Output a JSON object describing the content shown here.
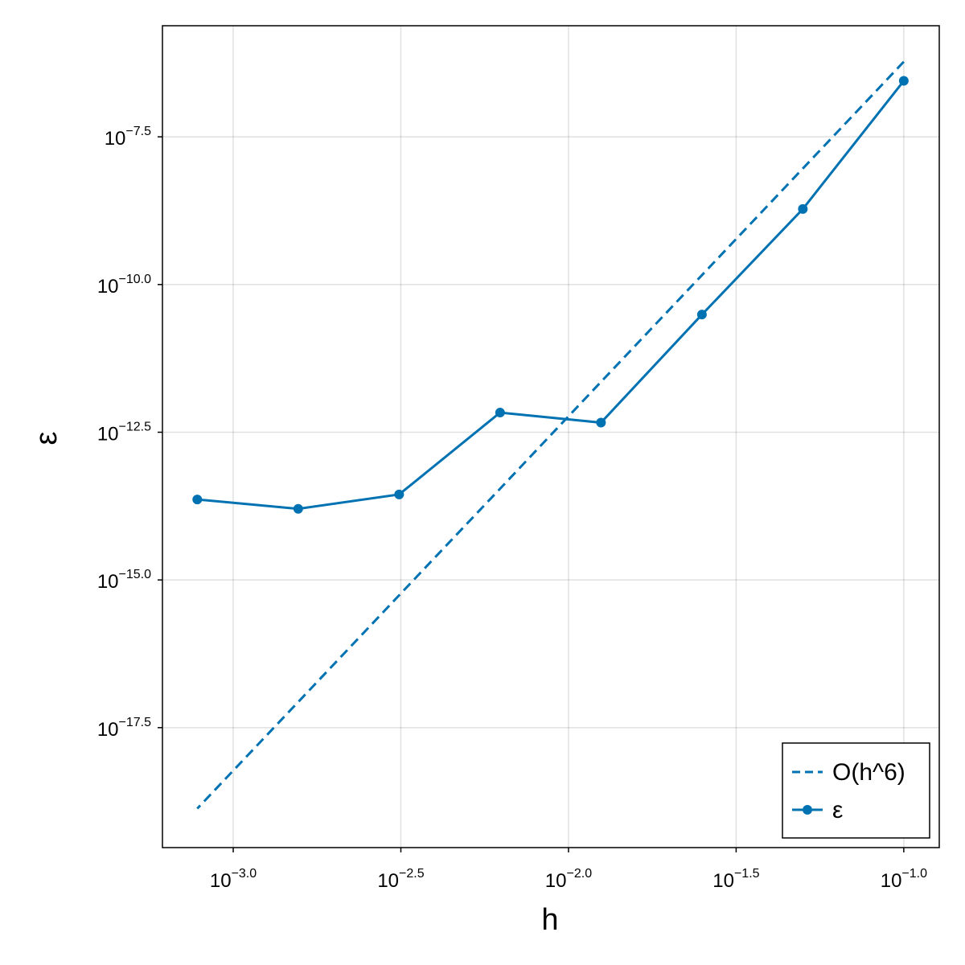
{
  "chart_data": {
    "type": "line",
    "x_label": "h",
    "y_label": "ε",
    "xscale": "log",
    "yscale": "log",
    "grid": true,
    "legend": "lower right",
    "x": [
      0.1,
      0.05,
      0.025,
      0.0125,
      0.00625,
      0.003125,
      0.0015625,
      0.00078125
    ],
    "series": [
      {
        "name": "O(h^6)",
        "color": "#0072b2",
        "linestyle": "dashed",
        "markers": false,
        "values": [
          5.9e-07,
          9.2e-09,
          1.44e-10,
          2.25e-12,
          3.5e-14,
          5.5e-16,
          8.6e-18,
          1.35e-19
        ]
      },
      {
        "name": "ε",
        "color": "#0072b2",
        "linestyle": "solid",
        "markers": true,
        "values": [
          2.8e-07,
          1.9e-09,
          3.1e-11,
          4.6e-13,
          6.8e-13,
          2.8e-14,
          1.6e-14,
          2.3e-14
        ]
      }
    ],
    "xlim": [
      0.000615,
      0.1276
    ],
    "ylim": [
      2.95e-20,
      2.4e-06
    ],
    "xticks": [
      {
        "value": 0.001,
        "label": "10",
        "exponent": "−3.0"
      },
      {
        "value": 0.0031622776601683794,
        "label": "10",
        "exponent": "−2.5"
      },
      {
        "value": 0.01,
        "label": "10",
        "exponent": "−2.0"
      },
      {
        "value": 0.03162277660168379,
        "label": "10",
        "exponent": "−1.5"
      },
      {
        "value": 0.1,
        "label": "10",
        "exponent": "−1.0"
      }
    ],
    "yticks": [
      {
        "value": 3.1622776601683795e-18,
        "label": "10",
        "exponent": "−17.5"
      },
      {
        "value": 1e-15,
        "label": "10",
        "exponent": "−15.0"
      },
      {
        "value": 3.162277660168379e-13,
        "label": "10",
        "exponent": "−12.5"
      },
      {
        "value": 1e-10,
        "label": "10",
        "exponent": "−10.0"
      },
      {
        "value": 3.162277660168379e-08,
        "label": "10",
        "exponent": "−7.5"
      }
    ]
  }
}
